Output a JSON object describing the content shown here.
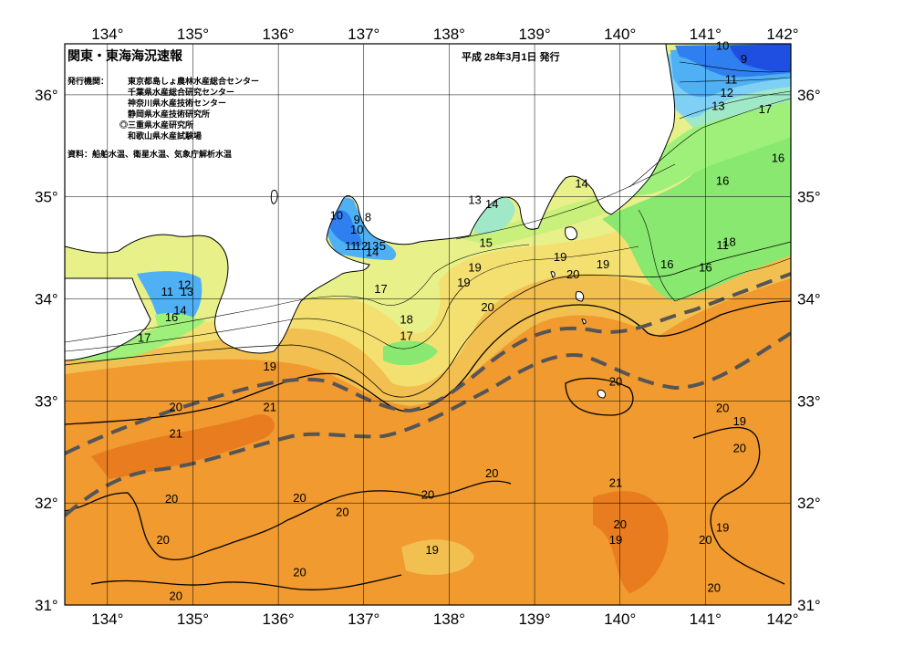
{
  "title": "関東・東海海況速報",
  "issued": "平成 28年3月1日 発行",
  "issuers_label": "発行機関：",
  "issuers": [
    "東京都島しょ農林水産総合センター",
    "千葉県水産総合研究センター",
    "神奈川県水産技術センター",
    "静岡県水産技術研究所",
    "◎三重県水産研究所",
    "和歌山県水産試験場"
  ],
  "sources": "資料：船舶水温、衛星水温、気象庁解析水温",
  "lon_labels": [
    "134°",
    "135°",
    "136°",
    "137°",
    "138°",
    "139°",
    "140°",
    "141°",
    "142°"
  ],
  "lat_labels": [
    "36°",
    "35°",
    "34°",
    "33°",
    "32°",
    "31°"
  ],
  "colors": {
    "t9": "#1f4fe0",
    "t10": "#2f7ff0",
    "t11": "#4fb0f4",
    "t12": "#7fd0f4",
    "t13": "#9fe8c8",
    "t14": "#9ff07a",
    "t15": "#c8f07a",
    "t16": "#88e870",
    "t17": "#e8f08a",
    "t18": "#f4e070",
    "t19": "#f2c050",
    "t20": "#f09a30",
    "t21": "#e87c1e",
    "land": "#ffffff",
    "kuroshio": "#555555"
  },
  "contour_labels": [
    {
      "text": "10",
      "lon": 141.2,
      "lat": 36.44
    },
    {
      "text": "9",
      "lon": 141.45,
      "lat": 36.31
    },
    {
      "text": "11",
      "lon": 141.3,
      "lat": 36.11
    },
    {
      "text": "12",
      "lon": 141.25,
      "lat": 35.98
    },
    {
      "text": "13",
      "lon": 141.15,
      "lat": 35.85
    },
    {
      "text": "17",
      "lon": 141.7,
      "lat": 35.82
    },
    {
      "text": "16",
      "lon": 141.85,
      "lat": 35.34
    },
    {
      "text": "16",
      "lon": 141.2,
      "lat": 35.12
    },
    {
      "text": "14",
      "lon": 139.55,
      "lat": 35.09
    },
    {
      "text": "14",
      "lon": 138.5,
      "lat": 34.89
    },
    {
      "text": "13",
      "lon": 138.3,
      "lat": 34.93
    },
    {
      "text": "10",
      "lon": 136.68,
      "lat": 34.78
    },
    {
      "text": "9",
      "lon": 136.92,
      "lat": 34.74
    },
    {
      "text": "8",
      "lon": 137.05,
      "lat": 34.76
    },
    {
      "text": "10",
      "lon": 136.92,
      "lat": 34.64
    },
    {
      "text": "11",
      "lon": 136.85,
      "lat": 34.48
    },
    {
      "text": "12",
      "lon": 136.97,
      "lat": 34.48
    },
    {
      "text": "13",
      "lon": 137.1,
      "lat": 34.48
    },
    {
      "text": "5",
      "lon": 137.22,
      "lat": 34.48
    },
    {
      "text": "14",
      "lon": 137.1,
      "lat": 34.42
    },
    {
      "text": "15",
      "lon": 138.43,
      "lat": 34.51
    },
    {
      "text": "11",
      "lon": 141.2,
      "lat": 34.49
    },
    {
      "text": "18",
      "lon": 141.28,
      "lat": 34.52
    },
    {
      "text": "16",
      "lon": 140.55,
      "lat": 34.3
    },
    {
      "text": "16",
      "lon": 141.0,
      "lat": 34.27
    },
    {
      "text": "19",
      "lon": 139.3,
      "lat": 34.37
    },
    {
      "text": "20",
      "lon": 139.45,
      "lat": 34.2
    },
    {
      "text": "19",
      "lon": 139.8,
      "lat": 34.3
    },
    {
      "text": "19",
      "lon": 138.3,
      "lat": 34.27
    },
    {
      "text": "19",
      "lon": 138.17,
      "lat": 34.12
    },
    {
      "text": "17",
      "lon": 137.2,
      "lat": 34.06
    },
    {
      "text": "20",
      "lon": 138.45,
      "lat": 33.88
    },
    {
      "text": "18",
      "lon": 137.5,
      "lat": 33.76
    },
    {
      "text": "17",
      "lon": 137.5,
      "lat": 33.6
    },
    {
      "text": "12",
      "lon": 134.9,
      "lat": 34.1
    },
    {
      "text": "11",
      "lon": 134.7,
      "lat": 34.03
    },
    {
      "text": "13",
      "lon": 134.93,
      "lat": 34.03
    },
    {
      "text": "14",
      "lon": 134.85,
      "lat": 33.85
    },
    {
      "text": "16",
      "lon": 134.75,
      "lat": 33.78
    },
    {
      "text": "17",
      "lon": 134.43,
      "lat": 33.58
    },
    {
      "text": "19",
      "lon": 135.9,
      "lat": 33.3
    },
    {
      "text": "20",
      "lon": 134.8,
      "lat": 32.9
    },
    {
      "text": "21",
      "lon": 135.9,
      "lat": 32.9
    },
    {
      "text": "21",
      "lon": 134.8,
      "lat": 32.64
    },
    {
      "text": "20",
      "lon": 139.95,
      "lat": 33.15
    },
    {
      "text": "20",
      "lon": 141.2,
      "lat": 32.89
    },
    {
      "text": "19",
      "lon": 141.4,
      "lat": 32.76
    },
    {
      "text": "20",
      "lon": 141.4,
      "lat": 32.5
    },
    {
      "text": "20",
      "lon": 138.5,
      "lat": 32.25
    },
    {
      "text": "21",
      "lon": 139.95,
      "lat": 32.16
    },
    {
      "text": "20",
      "lon": 137.75,
      "lat": 32.04
    },
    {
      "text": "20",
      "lon": 136.25,
      "lat": 32.01
    },
    {
      "text": "20",
      "lon": 134.75,
      "lat": 32.0
    },
    {
      "text": "20",
      "lon": 136.75,
      "lat": 31.87
    },
    {
      "text": "20",
      "lon": 140.0,
      "lat": 31.75
    },
    {
      "text": "19",
      "lon": 139.95,
      "lat": 31.6
    },
    {
      "text": "19",
      "lon": 141.2,
      "lat": 31.72
    },
    {
      "text": "20",
      "lon": 134.65,
      "lat": 31.6
    },
    {
      "text": "19",
      "lon": 137.8,
      "lat": 31.5
    },
    {
      "text": "20",
      "lon": 141.0,
      "lat": 31.6
    },
    {
      "text": "20",
      "lon": 136.25,
      "lat": 31.28
    },
    {
      "text": "20",
      "lon": 141.1,
      "lat": 31.13
    },
    {
      "text": "20",
      "lon": 134.8,
      "lat": 31.05
    }
  ]
}
